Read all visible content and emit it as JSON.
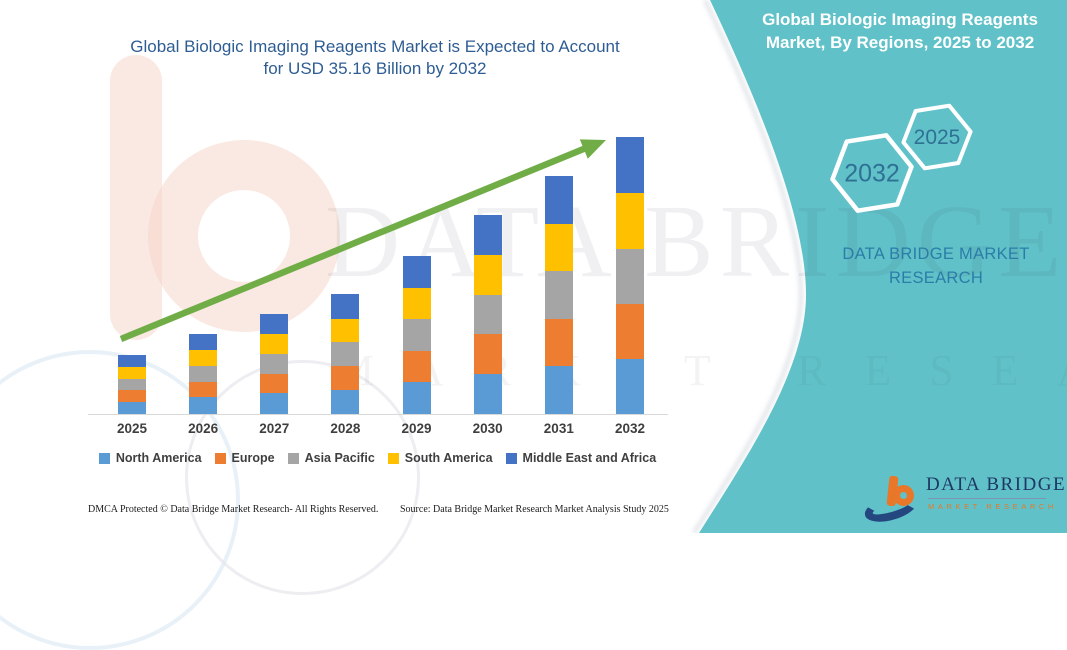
{
  "main_title": {
    "line1": "Global Biologic Imaging Reagents Market is Expected to Account",
    "line2": "for USD 35.16 Billion by 2032",
    "color": "#2e5d93"
  },
  "right_panel": {
    "title": "Global Biologic Imaging Reagents Market, By Regions, 2025 to 2032",
    "bg_color": "#60c2c8",
    "hexagons": [
      {
        "label": "2032"
      },
      {
        "label": "2025"
      }
    ],
    "brand_name": "DATA BRIDGE MARKET RESEARCH",
    "brand_text_color": "#2b7da8"
  },
  "watermarks": {
    "brand_line": "DATA BRIDGE",
    "tagline_line": "MARKET RESEARCH"
  },
  "logo": {
    "name": "DATA BRIDGE",
    "tagline": "MARKET RESEARCH",
    "navy": "#1f3864",
    "orange": "#e87729"
  },
  "footer": {
    "dmca": "DMCA Protected © Data Bridge Market Research-  All Rights Reserved.",
    "source": "Source: Data Bridge Market Research  Market Analysis Study 2025"
  },
  "chart_data": {
    "type": "bar",
    "stacked": true,
    "title": "Global Biologic Imaging Reagents Market is Expected to Account for USD 35.16 Billion by 2032",
    "unit": "USD Billion (estimated from bar heights; 2032 total labeled 35.16)",
    "categories": [
      "2025",
      "2026",
      "2027",
      "2028",
      "2029",
      "2030",
      "2031",
      "2032"
    ],
    "series": [
      {
        "name": "North America",
        "color": "#5B9BD5",
        "values": [
          1.5,
          2.1,
          2.6,
          3.1,
          4.0,
          5.1,
          6.1,
          7.0
        ]
      },
      {
        "name": "Europe",
        "color": "#ED7D31",
        "values": [
          1.5,
          2.0,
          2.5,
          3.0,
          4.0,
          5.0,
          6.0,
          7.0
        ]
      },
      {
        "name": "Asia Pacific",
        "color": "#A5A5A5",
        "values": [
          1.5,
          2.0,
          2.5,
          3.0,
          4.0,
          5.0,
          6.0,
          7.0
        ]
      },
      {
        "name": "South America",
        "color": "#FFC000",
        "values": [
          1.5,
          2.0,
          2.5,
          3.0,
          4.0,
          5.1,
          6.0,
          7.1
        ]
      },
      {
        "name": "Middle East and Africa",
        "color": "#4472C4",
        "values": [
          1.5,
          2.1,
          2.6,
          3.1,
          4.1,
          5.1,
          6.1,
          7.06
        ]
      }
    ],
    "totals": [
      7.5,
      10.2,
      12.7,
      15.2,
      20.1,
      25.3,
      30.2,
      35.16
    ],
    "xlabel": "",
    "ylabel": "",
    "ylim": [
      0,
      36
    ],
    "gridlines": false,
    "legend_position": "bottom",
    "annotation_arrow_color": "#70AD47"
  }
}
